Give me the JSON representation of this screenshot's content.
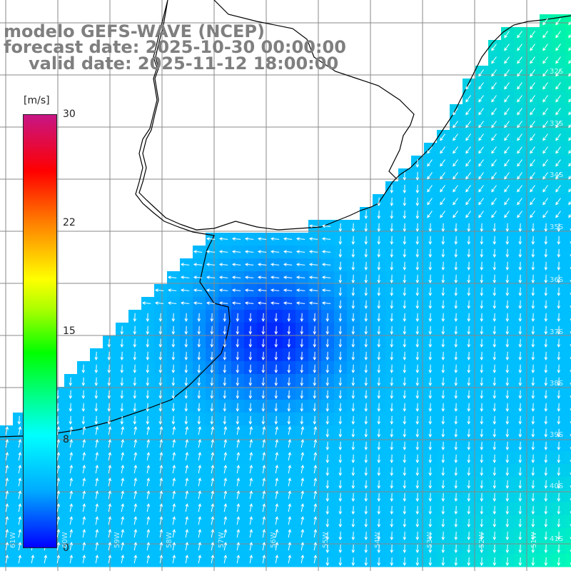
{
  "title": {
    "model": "modelo GEFS-WAVE (NCEP)",
    "forecast": "forecast date: 2025-10-30 00:00:00",
    "valid": "valid date: 2025-11-12 18:00:00"
  },
  "colorbar": {
    "unit": "[m/s]",
    "ticks": [
      "30",
      "22",
      "15",
      "8",
      "0"
    ],
    "colors": [
      "#0000ff",
      "#00aaff",
      "#00ffff",
      "#00ff00",
      "#ffff00",
      "#ff8000",
      "#ff0000",
      "#c71585"
    ]
  },
  "grid": {
    "lat_labels": [
      "32S",
      "33S",
      "34S",
      "35S",
      "36S",
      "37S",
      "38S",
      "39S",
      "40S",
      "41S"
    ],
    "lon_labels": [
      "61W",
      "60W",
      "59W",
      "58W",
      "57W",
      "56W",
      "55W",
      "54W",
      "53W",
      "52W",
      "51W"
    ]
  },
  "colors": {
    "land": "#ffffff",
    "coast": "#000000",
    "grid": "#888888",
    "vectors": "#ffffff"
  }
}
